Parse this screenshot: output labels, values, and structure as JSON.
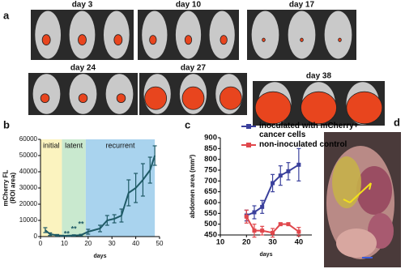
{
  "panel_a": {
    "panel_label": "a",
    "images": [
      {
        "label": "day 3"
      },
      {
        "label": "day 10"
      },
      {
        "label": "day 17"
      },
      {
        "label": "day 24"
      },
      {
        "label": "day 27"
      },
      {
        "label": "day 38"
      }
    ]
  },
  "chart_data": [
    {
      "type": "line",
      "panel_label": "b",
      "ylabel": [
        "mCherry FL",
        "(ROI area)"
      ],
      "xlabel": "days",
      "xlim": [
        0,
        50
      ],
      "xticks": [
        0,
        10,
        20,
        30,
        40,
        50
      ],
      "ylim": [
        0,
        60000
      ],
      "yticks": [
        0,
        10000,
        20000,
        30000,
        40000,
        50000,
        60000
      ],
      "regions": [
        {
          "label": "initial",
          "x": [
            0,
            9
          ],
          "color": "#fbf3bf"
        },
        {
          "label": "latent",
          "x": [
            9,
            19
          ],
          "color": "#c9e9cf"
        },
        {
          "label": "recurrent",
          "x": [
            19,
            48
          ],
          "color": "#a9d3ee"
        }
      ],
      "annotations": [
        {
          "text": "**",
          "x": 11,
          "y": 1500
        },
        {
          "text": "**",
          "x": 14,
          "y": 4500
        },
        {
          "text": "**",
          "x": 17,
          "y": 7500
        }
      ],
      "series": [
        {
          "color": "#1f5a66",
          "x": [
            2,
            4,
            7,
            9,
            12,
            14,
            17,
            20,
            25,
            28,
            31,
            34,
            37,
            40,
            43,
            46,
            48
          ],
          "values": [
            4000,
            1500,
            800,
            500,
            500,
            700,
            900,
            3000,
            5000,
            10000,
            11000,
            13000,
            27000,
            30000,
            35000,
            41000,
            50000
          ],
          "errors": [
            1500,
            800,
            500,
            300,
            300,
            400,
            500,
            1500,
            2000,
            3000,
            2500,
            4000,
            8000,
            9000,
            10000,
            8000,
            6000
          ]
        }
      ]
    },
    {
      "type": "line",
      "panel_label": "c",
      "ylabel": "abdomen area (mm²)",
      "xlabel": "days",
      "xlim": [
        10,
        45
      ],
      "xticks": [
        10,
        20,
        30,
        40
      ],
      "ylim": [
        450,
        900
      ],
      "yticks": [
        450,
        500,
        550,
        600,
        650,
        700,
        750,
        800,
        850,
        900
      ],
      "series": [
        {
          "name": "inoculated with mCherry+ cancer cells",
          "color": "#3a409c",
          "x": [
            20,
            23,
            26,
            30,
            33,
            36,
            40
          ],
          "values": [
            540,
            555,
            580,
            690,
            725,
            745,
            775
          ],
          "errors": [
            25,
            30,
            30,
            40,
            45,
            40,
            75
          ]
        },
        {
          "name": "non-inoculated control",
          "color": "#e0474c",
          "x": [
            20,
            23,
            26,
            30,
            33,
            36,
            40
          ],
          "values": [
            535,
            470,
            470,
            460,
            500,
            500,
            465
          ],
          "errors": [
            30,
            30,
            20,
            20,
            5,
            5,
            20
          ]
        }
      ]
    }
  ],
  "panel_d": {
    "panel_label": "d"
  }
}
